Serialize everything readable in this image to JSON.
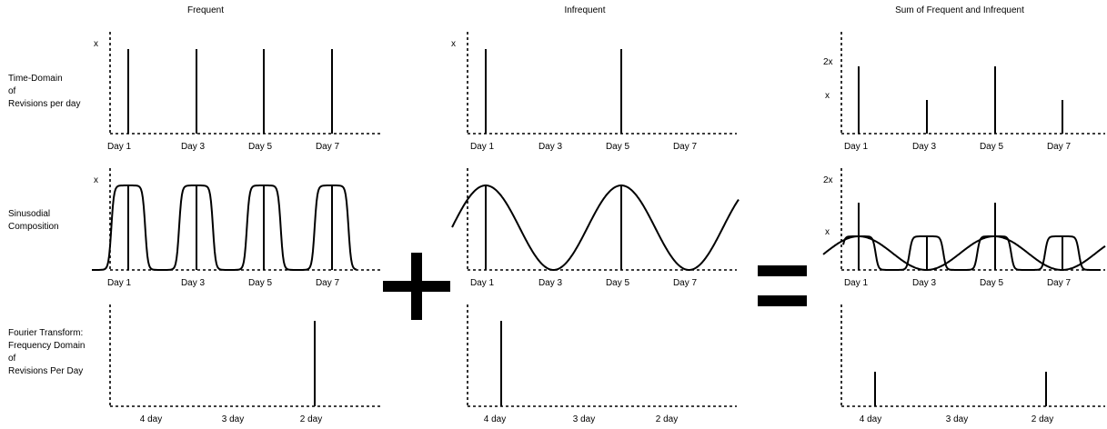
{
  "columns": [
    {
      "title": "Frequent"
    },
    {
      "title": "Infrequent"
    },
    {
      "title": "Sum of Frequent and Infrequent"
    }
  ],
  "row_labels": [
    [
      "Time-Domain",
      "of",
      "Revisions per day"
    ],
    [
      "Sinusodial",
      "Composition"
    ],
    [
      "Fourier Transform:",
      "Frequency Domain",
      "of",
      "Revisions Per Day"
    ]
  ],
  "time_ticks": [
    "Day 1",
    "Day 3",
    "Day 5",
    "Day 7"
  ],
  "freq_ticks": [
    "4 day",
    "3 day",
    "2 day"
  ],
  "y_labels": {
    "x": "x",
    "two_x": "2x"
  },
  "operators": {
    "plus": "+",
    "equals": "="
  }
}
